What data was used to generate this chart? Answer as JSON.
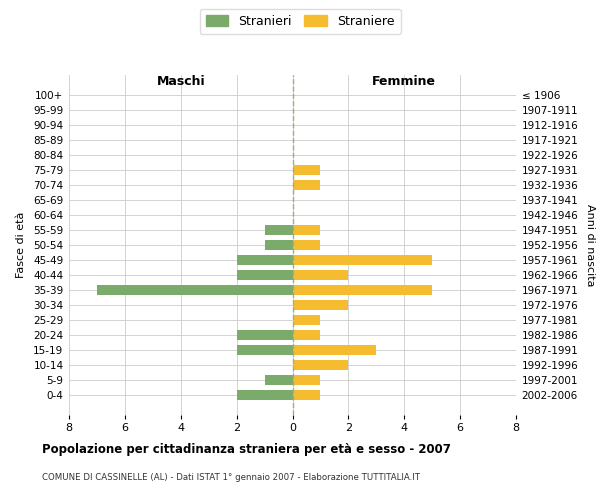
{
  "age_groups": [
    "100+",
    "95-99",
    "90-94",
    "85-89",
    "80-84",
    "75-79",
    "70-74",
    "65-69",
    "60-64",
    "55-59",
    "50-54",
    "45-49",
    "40-44",
    "35-39",
    "30-34",
    "25-29",
    "20-24",
    "15-19",
    "10-14",
    "5-9",
    "0-4"
  ],
  "birth_years": [
    "≤ 1906",
    "1907-1911",
    "1912-1916",
    "1917-1921",
    "1922-1926",
    "1927-1931",
    "1932-1936",
    "1937-1941",
    "1942-1946",
    "1947-1951",
    "1952-1956",
    "1957-1961",
    "1962-1966",
    "1967-1971",
    "1972-1976",
    "1977-1981",
    "1982-1986",
    "1987-1991",
    "1992-1996",
    "1997-2001",
    "2002-2006"
  ],
  "maschi": [
    0,
    0,
    0,
    0,
    0,
    0,
    0,
    0,
    0,
    1,
    1,
    2,
    2,
    7,
    0,
    0,
    2,
    2,
    0,
    1,
    2
  ],
  "femmine": [
    0,
    0,
    0,
    0,
    0,
    1,
    1,
    0,
    0,
    1,
    1,
    5,
    2,
    5,
    2,
    1,
    1,
    3,
    2,
    1,
    1
  ],
  "maschi_color": "#7aab6b",
  "femmine_color": "#f5bc2f",
  "title": "Popolazione per cittadinanza straniera per età e sesso - 2007",
  "subtitle": "COMUNE DI CASSINELLE (AL) - Dati ISTAT 1° gennaio 2007 - Elaborazione TUTTITALIA.IT",
  "label_maschi": "Maschi",
  "label_femmine": "Femmine",
  "ylabel_left": "Fasce di età",
  "ylabel_right": "Anni di nascita",
  "legend_maschi": "Stranieri",
  "legend_femmine": "Straniere",
  "xlim": 8,
  "background_color": "#ffffff",
  "grid_color": "#cccccc"
}
